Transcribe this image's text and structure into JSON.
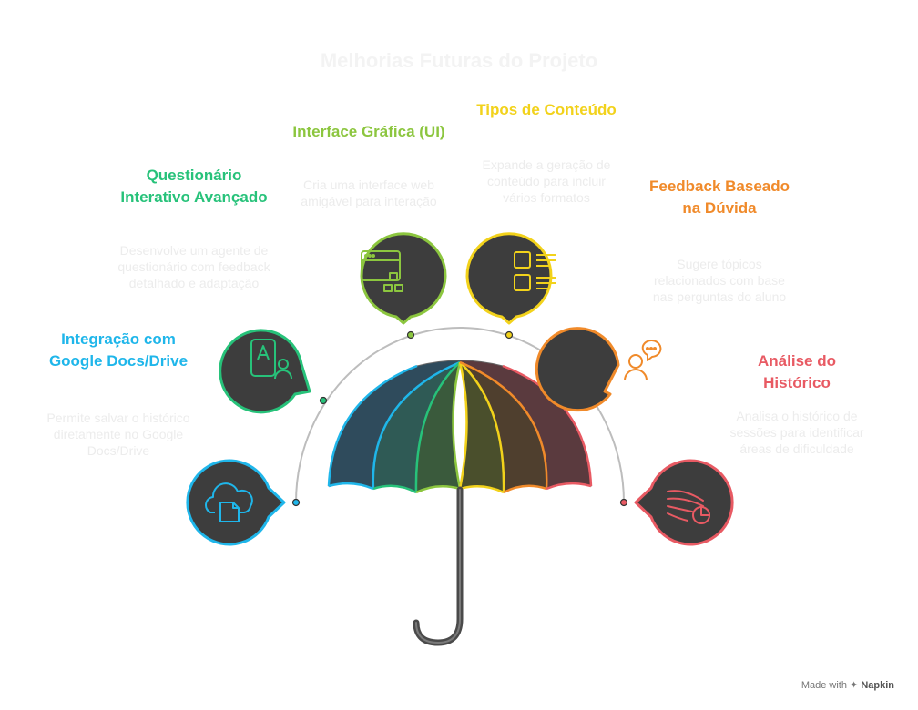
{
  "title": "Melhorias Futuras do Projeto",
  "items": [
    {
      "title": "Integração com Google Docs/Drive",
      "description": "Permite salvar o histórico diretamente no Google Docs/Drive",
      "color": "#1fb6ea",
      "icon": "cloud-document-icon"
    },
    {
      "title": "Questionário Interativo Avançado",
      "description": "Desenvolve um agente de questionário com feedback detalhado e adaptação",
      "color": "#27c27a",
      "icon": "quiz-user-icon"
    },
    {
      "title": "Interface Gráfica (UI)",
      "description": "Cria uma interface web amigável para interação",
      "color": "#8cc63f",
      "icon": "web-window-icon"
    },
    {
      "title": "Tipos de Conteúdo",
      "description": "Expande a geração de conteúdo para incluir vários formatos",
      "color": "#f2d21b",
      "icon": "content-grid-icon"
    },
    {
      "title": "Feedback Baseado na Dúvida",
      "description": "Sugere tópicos relacionados com base nas perguntas do aluno",
      "color": "#f08a2a",
      "icon": "thinking-person-icon"
    },
    {
      "title": "Análise do Histórico",
      "description": "Analisa o histórico de sessões para identificar áreas de dificuldade",
      "color": "#e85a63",
      "icon": "analytics-chart-icon"
    }
  ],
  "footer": {
    "prefix": "Made with",
    "brand": "Napkin"
  }
}
